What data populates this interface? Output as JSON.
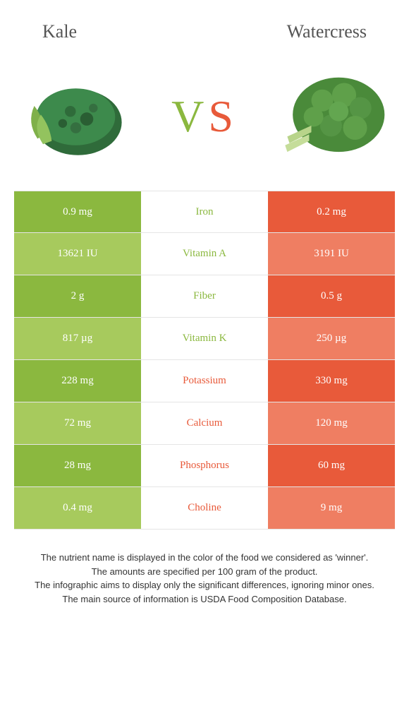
{
  "colors": {
    "left": "#8bb83f",
    "right": "#e85a3a",
    "left_light": "#a7ca5d",
    "right_light": "#ef7e62"
  },
  "header": {
    "left": "Kale",
    "right": "Watercress"
  },
  "vs": {
    "v": "V",
    "s": "S"
  },
  "rows": [
    {
      "left": "0.9 mg",
      "name": "Iron",
      "right": "0.2 mg",
      "winner": "left"
    },
    {
      "left": "13621 IU",
      "name": "Vitamin A",
      "right": "3191 IU",
      "winner": "left"
    },
    {
      "left": "2 g",
      "name": "Fiber",
      "right": "0.5 g",
      "winner": "left"
    },
    {
      "left": "817 µg",
      "name": "Vitamin K",
      "right": "250 µg",
      "winner": "left"
    },
    {
      "left": "228 mg",
      "name": "Potassium",
      "right": "330 mg",
      "winner": "right"
    },
    {
      "left": "72 mg",
      "name": "Calcium",
      "right": "120 mg",
      "winner": "right"
    },
    {
      "left": "28 mg",
      "name": "Phosphorus",
      "right": "60 mg",
      "winner": "right"
    },
    {
      "left": "0.4 mg",
      "name": "Choline",
      "right": "9 mg",
      "winner": "right"
    }
  ],
  "footer": {
    "l1": "The nutrient name is displayed in the color of the food we considered as 'winner'.",
    "l2": "The amounts are specified per 100 gram of the product.",
    "l3": "The infographic aims to display only the significant differences, ignoring minor ones.",
    "l4": "The main source of information is USDA Food Composition Database."
  }
}
